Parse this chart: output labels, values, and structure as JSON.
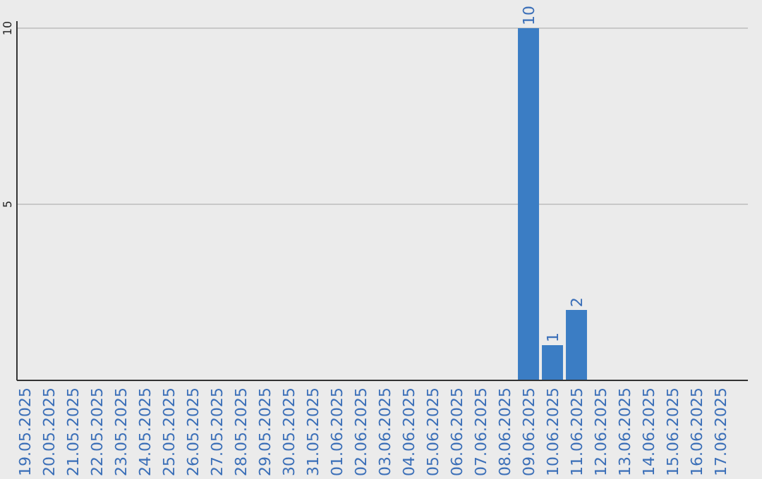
{
  "chart_data": {
    "type": "bar",
    "categories": [
      "19.05.2025",
      "20.05.2025",
      "21.05.2025",
      "22.05.2025",
      "23.05.2025",
      "24.05.2025",
      "25.05.2025",
      "26.05.2025",
      "27.05.2025",
      "28.05.2025",
      "29.05.2025",
      "30.05.2025",
      "31.05.2025",
      "01.06.2025",
      "02.06.2025",
      "03.06.2025",
      "04.06.2025",
      "05.06.2025",
      "06.06.2025",
      "07.06.2025",
      "08.06.2025",
      "09.06.2025",
      "10.06.2025",
      "11.06.2025",
      "12.06.2025",
      "13.06.2025",
      "14.06.2025",
      "15.06.2025",
      "16.06.2025",
      "17.06.2025"
    ],
    "values": [
      0,
      0,
      0,
      0,
      0,
      0,
      0,
      0,
      0,
      0,
      0,
      0,
      0,
      0,
      0,
      0,
      0,
      0,
      0,
      0,
      0,
      10,
      1,
      2,
      0,
      0,
      0,
      0,
      0,
      0
    ],
    "value_labels": [
      null,
      null,
      null,
      null,
      null,
      null,
      null,
      null,
      null,
      null,
      null,
      null,
      null,
      null,
      null,
      null,
      null,
      null,
      null,
      null,
      null,
      "10",
      "1",
      "2",
      null,
      null,
      null,
      null,
      null,
      null
    ],
    "color": "#3b7dc4",
    "ylim": [
      0,
      10
    ],
    "yticks": [
      5,
      10
    ],
    "grid": "y"
  }
}
